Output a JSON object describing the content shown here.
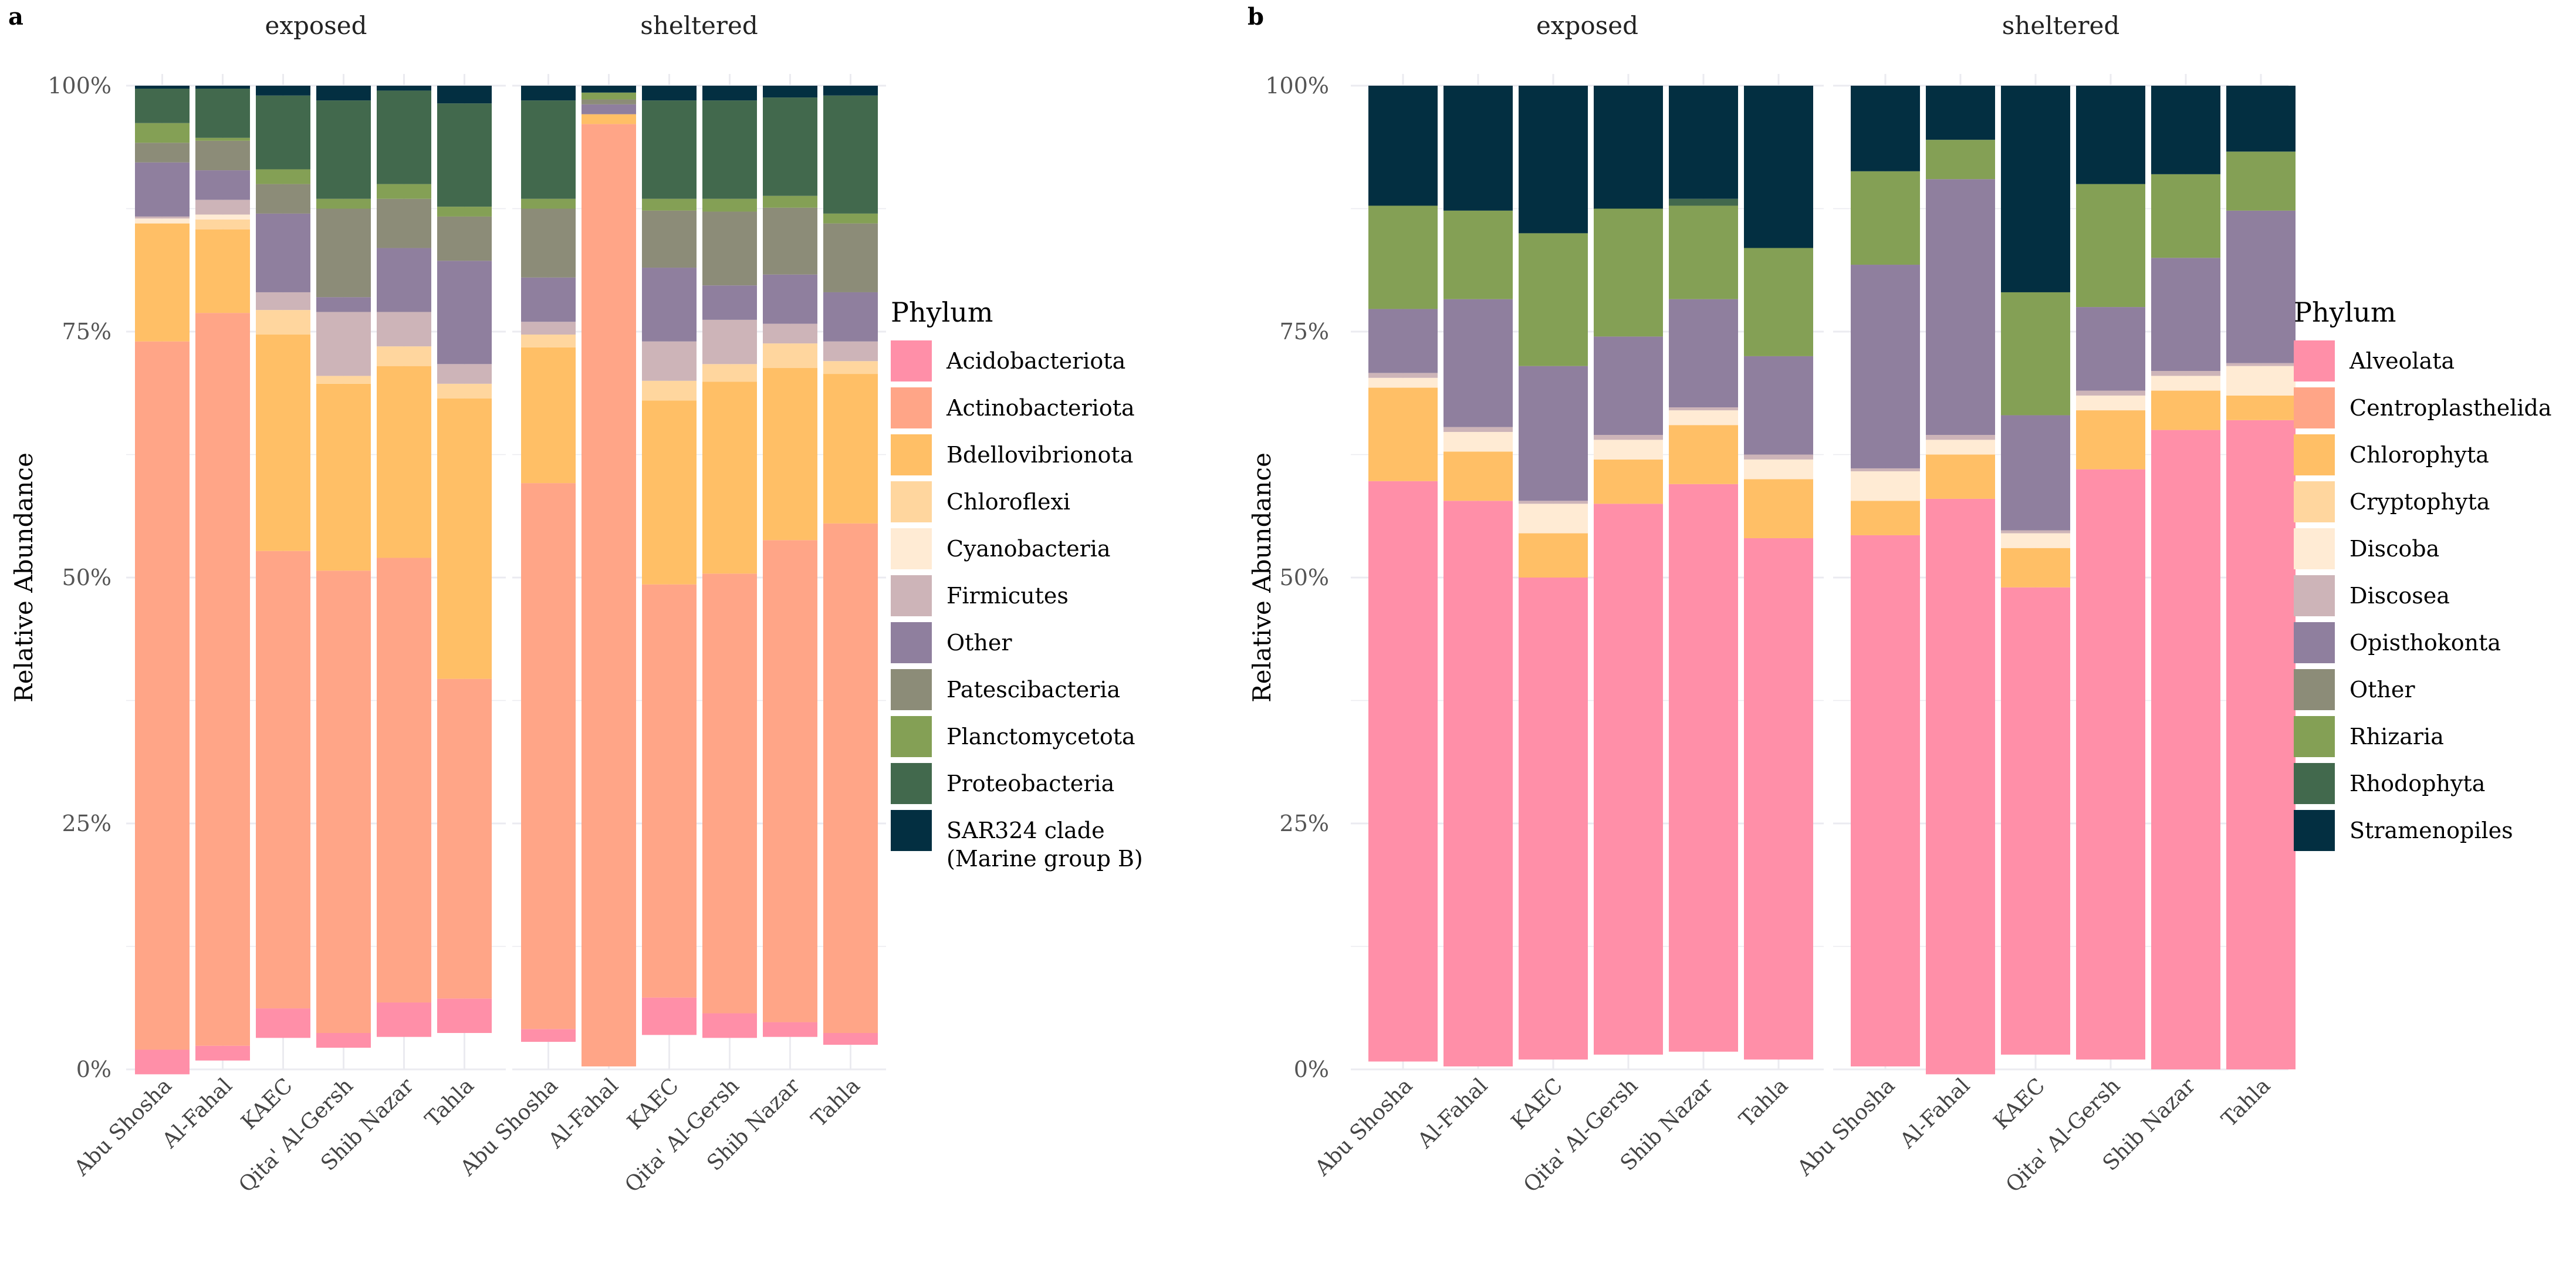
{
  "figure": {
    "palette_a": [
      "#FF8FA8",
      "#FFA587",
      "#FFBF66",
      "#FFD69E",
      "#FFEBD4",
      "#CDB4B8",
      "#8F7F9E",
      "#8C8C78",
      "#84A055",
      "#42694D",
      "#032F41"
    ],
    "palette_b": [
      "#FF8FA8",
      "#FFA587",
      "#FFBF66",
      "#FFD69E",
      "#FFEBD4",
      "#CDB4B8",
      "#8F7F9E",
      "#8C8C78",
      "#84A055",
      "#42694D",
      "#032F41"
    ],
    "panel_bg": "#ffffff",
    "grid_color": "#ebebf0"
  },
  "chart_data": [
    {
      "type": "bar",
      "stacked": true,
      "panel_label": "a",
      "ylabel": "Relative Abundance",
      "ylim": [
        0,
        1
      ],
      "yticks": [
        "0%",
        "25%",
        "50%",
        "75%",
        "100%"
      ],
      "facets": [
        "exposed",
        "sheltered"
      ],
      "categories": [
        "Abu Shosha",
        "Al-Fahal",
        "KAEC",
        "Qita' Al-Gersh",
        "Shib Nazar",
        "Tahla"
      ],
      "legend_title": "Phylum",
      "legend": [
        "Acidobacteriota",
        "Actinobacteriota",
        "Bdellovibrionota",
        "Chloroflexi",
        "Cyanobacteria",
        "Firmicutes",
        "Other",
        "Patescibacteria",
        "Planctomycetota",
        "Proteobacteria",
        "SAR324 clade\n(Marine group B)"
      ],
      "data": {
        "exposed": [
          [
            0.025,
            0.72,
            0.12,
            0.0,
            0.005,
            0.002,
            0.055,
            0.02,
            0.02,
            0.035,
            0.003
          ],
          [
            0.015,
            0.745,
            0.085,
            0.01,
            0.005,
            0.015,
            0.03,
            0.03,
            0.003,
            0.05,
            0.003
          ],
          [
            0.03,
            0.465,
            0.22,
            0.025,
            0.0,
            0.018,
            0.08,
            0.03,
            0.015,
            0.075,
            0.01
          ],
          [
            0.015,
            0.47,
            0.19,
            0.008,
            0.0,
            0.065,
            0.015,
            0.09,
            0.01,
            0.1,
            0.015
          ],
          [
            0.035,
            0.452,
            0.195,
            0.02,
            0.0,
            0.035,
            0.065,
            0.05,
            0.015,
            0.095,
            0.005
          ],
          [
            0.035,
            0.325,
            0.285,
            0.015,
            0.0,
            0.02,
            0.105,
            0.045,
            0.01,
            0.105,
            0.018
          ]
        ],
        "sheltered": [
          [
            0.013,
            0.555,
            0.138,
            0.013,
            0.0,
            0.013,
            0.045,
            0.07,
            0.01,
            0.1,
            0.015
          ],
          [
            0.0,
            0.958,
            0.01,
            0.0,
            0.0,
            0.0,
            0.01,
            0.005,
            0.007,
            0.0,
            0.007
          ],
          [
            0.038,
            0.42,
            0.187,
            0.02,
            0.0,
            0.04,
            0.075,
            0.058,
            0.012,
            0.1,
            0.015
          ],
          [
            0.025,
            0.447,
            0.195,
            0.018,
            0.0,
            0.045,
            0.035,
            0.075,
            0.013,
            0.1,
            0.015
          ],
          [
            0.015,
            0.49,
            0.175,
            0.025,
            0.0,
            0.02,
            0.05,
            0.068,
            0.012,
            0.1,
            0.012
          ],
          [
            0.012,
            0.518,
            0.152,
            0.013,
            0.0,
            0.02,
            0.05,
            0.07,
            0.01,
            0.12,
            0.01
          ]
        ]
      }
    },
    {
      "type": "bar",
      "stacked": true,
      "panel_label": "b",
      "ylabel": "Relative Abundance",
      "ylim": [
        0,
        1
      ],
      "yticks": [
        "0%",
        "25%",
        "50%",
        "75%",
        "100%"
      ],
      "facets": [
        "exposed",
        "sheltered"
      ],
      "categories": [
        "Abu Shosha",
        "Al-Fahal",
        "KAEC",
        "Qita' Al-Gersh",
        "Shib Nazar",
        "Tahla"
      ],
      "legend_title": "Phylum",
      "legend": [
        "Alveolata",
        "Centroplasthelida",
        "Chlorophyta",
        "Cryptophyta",
        "Discoba",
        "Discosea",
        "Opisthokonta",
        "Other",
        "Rhizaria",
        "Rhodophyta",
        "Stramenopiles"
      ],
      "data": {
        "exposed": [
          [
            0.59,
            0.0,
            0.095,
            0.0,
            0.01,
            0.005,
            0.065,
            0.0,
            0.105,
            0.0,
            0.122
          ],
          [
            0.575,
            0.0,
            0.05,
            0.0,
            0.02,
            0.005,
            0.13,
            0.0,
            0.09,
            0.0,
            0.127
          ],
          [
            0.49,
            0.0,
            0.045,
            0.0,
            0.03,
            0.003,
            0.137,
            0.0,
            0.135,
            0.0,
            0.15
          ],
          [
            0.56,
            0.0,
            0.045,
            0.0,
            0.02,
            0.005,
            0.1,
            0.0,
            0.13,
            0.0,
            0.125
          ],
          [
            0.577,
            0.0,
            0.06,
            0.0,
            0.015,
            0.003,
            0.11,
            0.0,
            0.095,
            0.007,
            0.115
          ],
          [
            0.53,
            0.0,
            0.06,
            0.0,
            0.02,
            0.005,
            0.1,
            0.0,
            0.11,
            0.0,
            0.165
          ]
        ],
        "sheltered": [
          [
            0.54,
            0.0,
            0.035,
            0.0,
            0.03,
            0.003,
            0.207,
            0.0,
            0.095,
            0.0,
            0.087
          ],
          [
            0.585,
            0.0,
            0.045,
            0.0,
            0.015,
            0.005,
            0.26,
            0.0,
            0.04,
            0.0,
            0.055
          ],
          [
            0.475,
            0.0,
            0.04,
            0.0,
            0.015,
            0.003,
            0.117,
            0.0,
            0.125,
            0.0,
            0.21
          ],
          [
            0.6,
            0.0,
            0.06,
            0.0,
            0.015,
            0.005,
            0.085,
            0.0,
            0.125,
            0.0,
            0.1
          ],
          [
            0.65,
            0.0,
            0.04,
            0.0,
            0.015,
            0.005,
            0.115,
            0.0,
            0.085,
            0.0,
            0.09
          ],
          [
            0.66,
            0.0,
            0.025,
            0.0,
            0.03,
            0.003,
            0.155,
            0.0,
            0.06,
            0.0,
            0.067
          ]
        ]
      }
    }
  ]
}
